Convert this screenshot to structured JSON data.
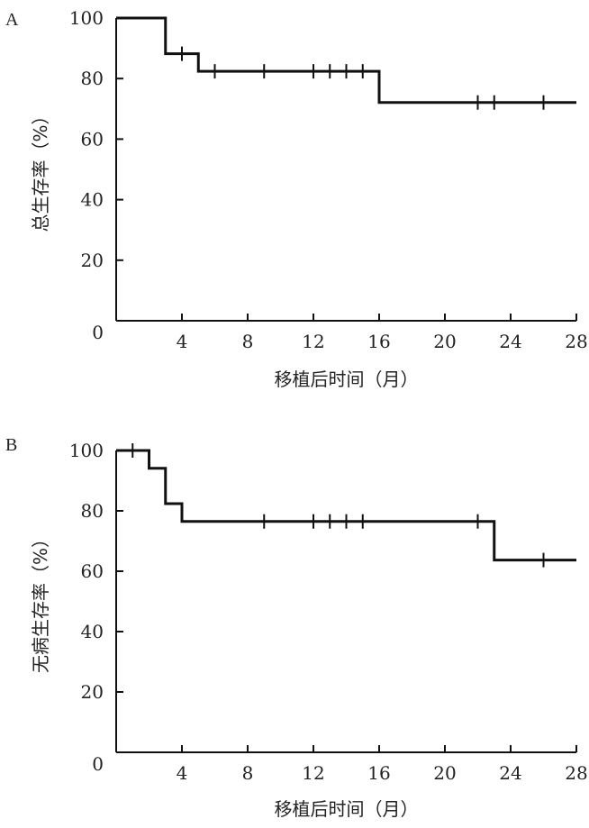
{
  "chart_data": [
    {
      "type": "line",
      "step": true,
      "panel_label": "A",
      "ylabel": "总生存率（%）",
      "xlabel": "移植后时间（月）",
      "xlim": [
        0,
        28
      ],
      "ylim": [
        0,
        100
      ],
      "xticks": [
        "4",
        "8",
        "12",
        "16",
        "20",
        "24",
        "28"
      ],
      "yticks": [
        "100",
        "80",
        "60",
        "40",
        "20"
      ],
      "origin_label": "0",
      "steps": [
        {
          "x": 0,
          "y": 100
        },
        {
          "x": 3,
          "y": 88.2
        },
        {
          "x": 5,
          "y": 82.4
        },
        {
          "x": 16,
          "y": 72.1
        },
        {
          "x": 28,
          "y": 72.1
        }
      ],
      "censored": [
        {
          "x": 4,
          "y": 88.2
        },
        {
          "x": 6,
          "y": 82.4
        },
        {
          "x": 9,
          "y": 82.4
        },
        {
          "x": 12,
          "y": 82.4
        },
        {
          "x": 13,
          "y": 82.4
        },
        {
          "x": 14,
          "y": 82.4
        },
        {
          "x": 15,
          "y": 82.4
        },
        {
          "x": 22,
          "y": 72.1
        },
        {
          "x": 23,
          "y": 72.1
        },
        {
          "x": 26,
          "y": 72.1
        }
      ]
    },
    {
      "type": "line",
      "step": true,
      "panel_label": "B",
      "ylabel": "无病生存率（%）",
      "xlabel": "移植后时间（月）",
      "xlim": [
        0,
        28
      ],
      "ylim": [
        0,
        100
      ],
      "xticks": [
        "4",
        "8",
        "12",
        "16",
        "20",
        "24",
        "28"
      ],
      "yticks": [
        "100",
        "80",
        "60",
        "40",
        "20"
      ],
      "origin_label": "0",
      "steps": [
        {
          "x": 0,
          "y": 100
        },
        {
          "x": 2,
          "y": 94.1
        },
        {
          "x": 3,
          "y": 82.4
        },
        {
          "x": 4,
          "y": 76.5
        },
        {
          "x": 23,
          "y": 63.7
        },
        {
          "x": 28,
          "y": 63.7
        }
      ],
      "censored": [
        {
          "x": 1,
          "y": 100
        },
        {
          "x": 9,
          "y": 76.5
        },
        {
          "x": 12,
          "y": 76.5
        },
        {
          "x": 13,
          "y": 76.5
        },
        {
          "x": 14,
          "y": 76.5
        },
        {
          "x": 15,
          "y": 76.5
        },
        {
          "x": 22,
          "y": 76.5
        },
        {
          "x": 26,
          "y": 63.7
        }
      ]
    }
  ]
}
